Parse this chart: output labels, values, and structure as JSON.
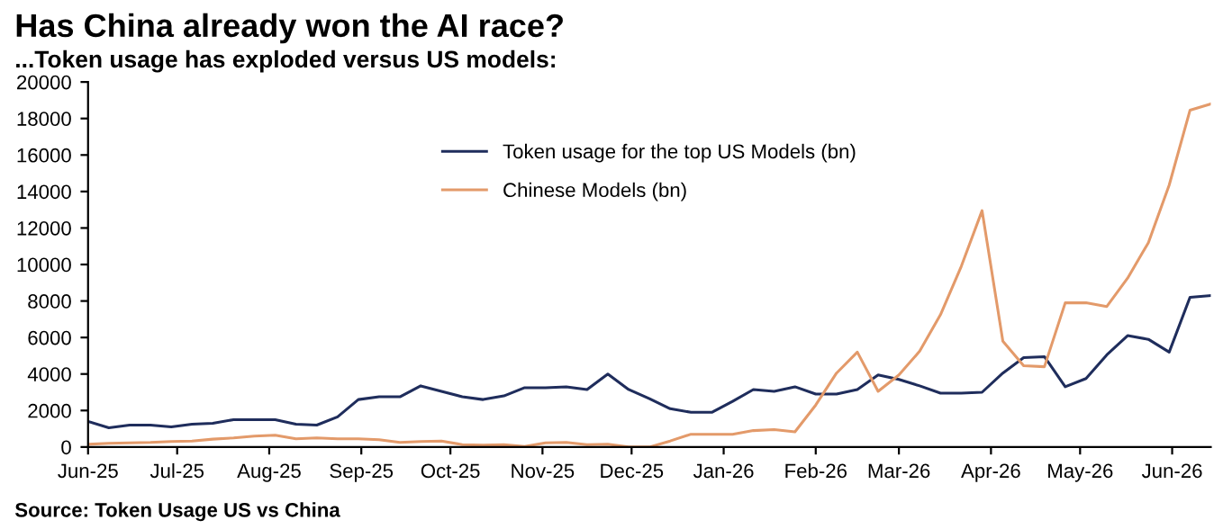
{
  "chart_data": {
    "type": "line",
    "title": "Has China already won the AI race?",
    "subtitle": "...Token usage has exploded versus US models:",
    "annotations": [
      "Source: Token Usage US vs China"
    ],
    "x": [
      "2025-06-01",
      "2025-06-08",
      "2025-06-15",
      "2025-06-22",
      "2025-06-29",
      "2025-07-06",
      "2025-07-13",
      "2025-07-20",
      "2025-07-27",
      "2025-08-03",
      "2025-08-10",
      "2025-08-17",
      "2025-08-24",
      "2025-08-31",
      "2025-09-07",
      "2025-09-14",
      "2025-09-21",
      "2025-09-28",
      "2025-10-05",
      "2025-10-12",
      "2025-10-19",
      "2025-10-26",
      "2025-11-02",
      "2025-11-09",
      "2025-11-16",
      "2025-11-23",
      "2025-11-30",
      "2025-12-07",
      "2025-12-14",
      "2025-12-21",
      "2025-12-28",
      "2026-01-04",
      "2026-01-11",
      "2026-01-18",
      "2026-01-25",
      "2026-02-01",
      "2026-02-08",
      "2026-02-15",
      "2026-02-22",
      "2026-03-01",
      "2026-03-08",
      "2026-03-15",
      "2026-03-22",
      "2026-03-29",
      "2026-04-05",
      "2026-04-12",
      "2026-04-19",
      "2026-04-26",
      "2026-05-03",
      "2026-05-10",
      "2026-05-17",
      "2026-05-24",
      "2026-05-31",
      "2026-06-07",
      "2026-06-14"
    ],
    "series": [
      {
        "name": "Token usage for the top US Models (bn)",
        "color": "#1f2d5c",
        "values": [
          1400,
          1050,
          1200,
          1200,
          1100,
          1250,
          1300,
          1500,
          1500,
          1500,
          1250,
          1200,
          1650,
          2600,
          2750,
          2750,
          3350,
          3050,
          2750,
          2600,
          2800,
          3250,
          3250,
          3300,
          3150,
          4000,
          3150,
          2650,
          2100,
          1900,
          1900,
          2500,
          3150,
          3050,
          3300,
          2900,
          2900,
          3150,
          3950,
          3700,
          3350,
          2950,
          2950,
          3000,
          4050,
          4900,
          4950,
          3300,
          3750,
          5050,
          6100,
          5900,
          5200,
          8200,
          8300
        ]
      },
      {
        "name": "Chinese Models (bn)",
        "color": "#e39a6a",
        "values": [
          150,
          200,
          230,
          250,
          300,
          330,
          430,
          500,
          600,
          650,
          450,
          500,
          450,
          450,
          400,
          250,
          300,
          330,
          130,
          100,
          130,
          30,
          230,
          250,
          130,
          150,
          0,
          0,
          330,
          700,
          700,
          700,
          900,
          950,
          830,
          2300,
          4050,
          5200,
          3050,
          3950,
          5250,
          7250,
          9900,
          12950,
          5800,
          4450,
          4400,
          7900,
          7900,
          7700,
          9250,
          11200,
          14350,
          18450,
          18800
        ]
      }
    ],
    "xlim": [
      "2025-06-01",
      "2026-06-14"
    ],
    "xticks": [
      {
        "value": "2025-06-01",
        "label": "Jun-25"
      },
      {
        "value": "2025-07-01",
        "label": "Jul-25"
      },
      {
        "value": "2025-08-01",
        "label": "Aug-25"
      },
      {
        "value": "2025-09-01",
        "label": "Sep-25"
      },
      {
        "value": "2025-10-01",
        "label": "Oct-25"
      },
      {
        "value": "2025-11-01",
        "label": "Nov-25"
      },
      {
        "value": "2025-12-01",
        "label": "Dec-25"
      },
      {
        "value": "2026-01-01",
        "label": "Jan-26"
      },
      {
        "value": "2026-02-01",
        "label": "Feb-26"
      },
      {
        "value": "2026-03-01",
        "label": "Mar-26"
      },
      {
        "value": "2026-04-01",
        "label": "Apr-26"
      },
      {
        "value": "2026-05-01",
        "label": "May-26"
      },
      {
        "value": "2026-06-01",
        "label": "Jun-26"
      }
    ],
    "ylim": [
      0,
      20000
    ],
    "yticks": [
      0,
      2000,
      4000,
      6000,
      8000,
      10000,
      12000,
      14000,
      16000,
      18000,
      20000
    ],
    "grid": false,
    "legend": "top",
    "marker": "none",
    "line_style": "solid"
  }
}
